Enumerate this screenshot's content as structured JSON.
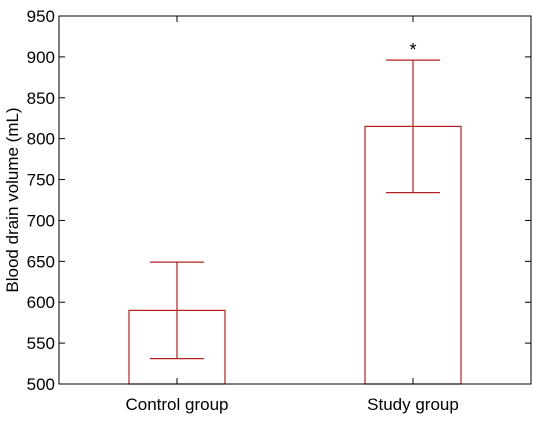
{
  "chart_data": {
    "type": "bar",
    "categories": [
      "Control group",
      "Study group"
    ],
    "values": [
      590,
      815
    ],
    "error_upper": [
      649,
      896
    ],
    "error_lower": [
      531,
      734
    ],
    "annotations": [
      "",
      "*"
    ],
    "xlabel": "",
    "ylabel": "Blood drain volume (mL)",
    "ylim": [
      500,
      950
    ],
    "yticks": [
      500,
      550,
      600,
      650,
      700,
      750,
      800,
      850,
      900,
      950
    ],
    "grid": false,
    "bar_color": "#b22222",
    "bar_fill": "#ffffff"
  }
}
